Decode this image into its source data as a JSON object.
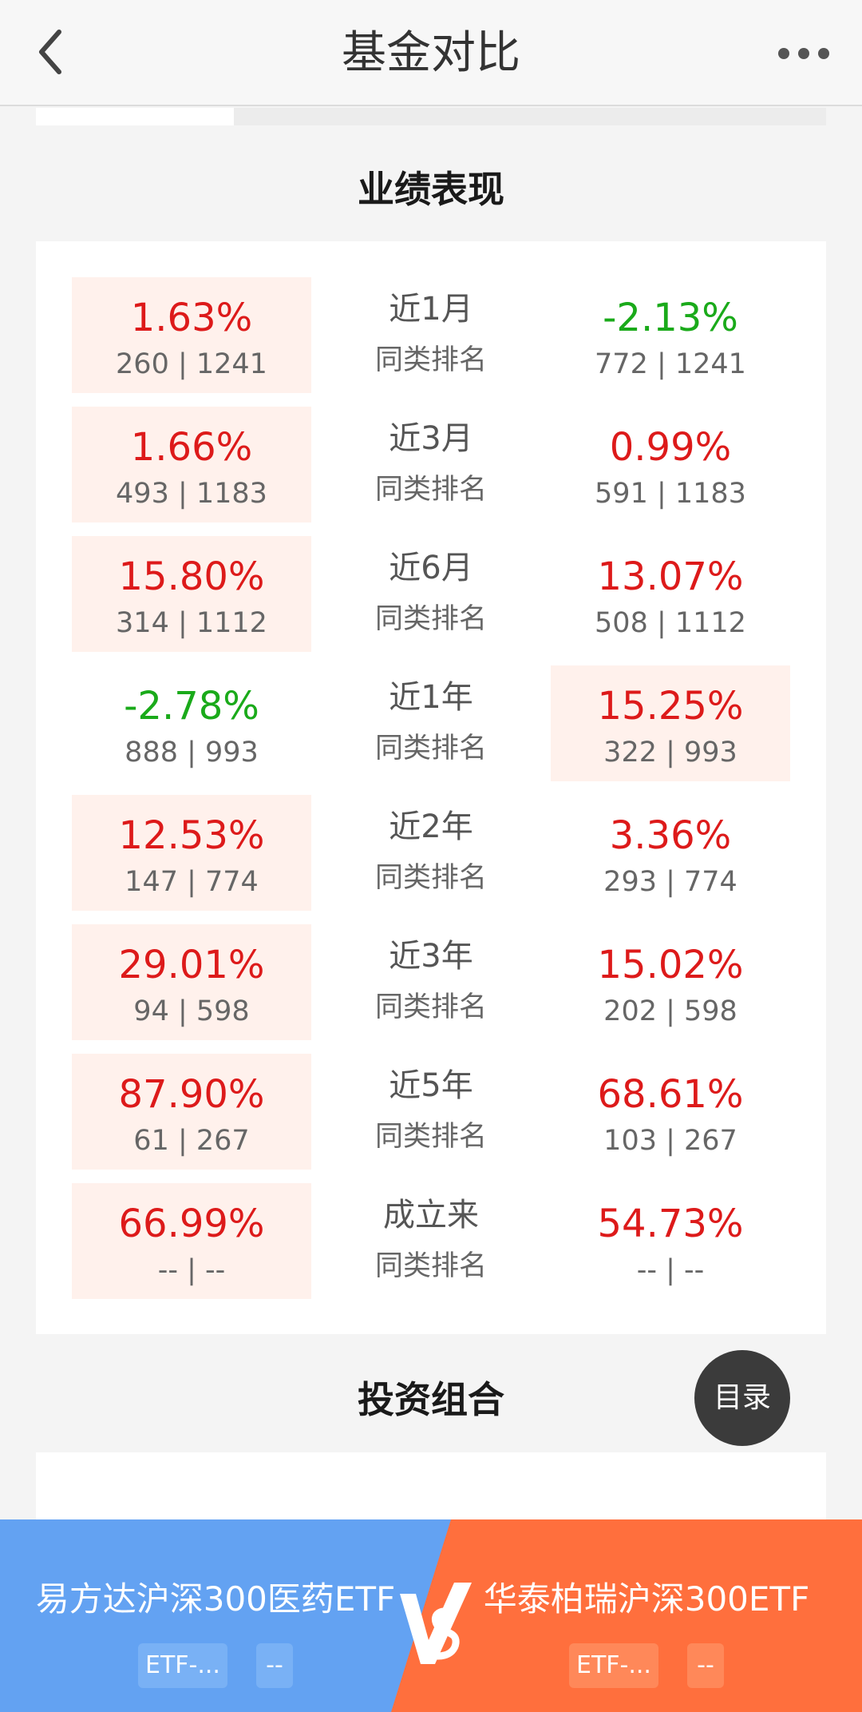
{
  "header": {
    "title": "基金对比"
  },
  "sections": {
    "performance_title": "业绩表现",
    "portfolio_title": "投资组合"
  },
  "performance": [
    {
      "period": "近1月",
      "rank_label": "同类排名",
      "left": {
        "pct": "1.63%",
        "rank": "260 | 1241",
        "dir": "up"
      },
      "right": {
        "pct": "-2.13%",
        "rank": "772 | 1241",
        "dir": "down"
      },
      "better": "left"
    },
    {
      "period": "近3月",
      "rank_label": "同类排名",
      "left": {
        "pct": "1.66%",
        "rank": "493 | 1183",
        "dir": "up"
      },
      "right": {
        "pct": "0.99%",
        "rank": "591 | 1183",
        "dir": "up"
      },
      "better": "left"
    },
    {
      "period": "近6月",
      "rank_label": "同类排名",
      "left": {
        "pct": "15.80%",
        "rank": "314 | 1112",
        "dir": "up"
      },
      "right": {
        "pct": "13.07%",
        "rank": "508 | 1112",
        "dir": "up"
      },
      "better": "left"
    },
    {
      "period": "近1年",
      "rank_label": "同类排名",
      "left": {
        "pct": "-2.78%",
        "rank": "888 | 993",
        "dir": "down"
      },
      "right": {
        "pct": "15.25%",
        "rank": "322 | 993",
        "dir": "up"
      },
      "better": "right"
    },
    {
      "period": "近2年",
      "rank_label": "同类排名",
      "left": {
        "pct": "12.53%",
        "rank": "147 | 774",
        "dir": "up"
      },
      "right": {
        "pct": "3.36%",
        "rank": "293 | 774",
        "dir": "up"
      },
      "better": "left"
    },
    {
      "period": "近3年",
      "rank_label": "同类排名",
      "left": {
        "pct": "29.01%",
        "rank": "94 | 598",
        "dir": "up"
      },
      "right": {
        "pct": "15.02%",
        "rank": "202 | 598",
        "dir": "up"
      },
      "better": "left"
    },
    {
      "period": "近5年",
      "rank_label": "同类排名",
      "left": {
        "pct": "87.90%",
        "rank": "61 | 267",
        "dir": "up"
      },
      "right": {
        "pct": "68.61%",
        "rank": "103 | 267",
        "dir": "up"
      },
      "better": "left"
    },
    {
      "period": "成立来",
      "rank_label": "同类排名",
      "left": {
        "pct": "66.99%",
        "rank": "-- | --",
        "dir": "up"
      },
      "right": {
        "pct": "54.73%",
        "rank": "-- | --",
        "dir": "up"
      },
      "better": "left"
    }
  ],
  "toc_button": "目录",
  "compare": {
    "left_fund": {
      "name": "易方达沪深300医药ETF",
      "tag1": "ETF-...",
      "tag2": "--"
    },
    "right_fund": {
      "name": "华泰柏瑞沪深300ETF",
      "tag1": "ETF-...",
      "tag2": "--"
    }
  },
  "colors": {
    "up": "#dd1a1a",
    "down": "#1aaa1a",
    "highlight": "#fff1ec",
    "left_bar": "#63a2f2",
    "right_bar": "#ff6f3d"
  },
  "icons": {
    "back": "chevron-left-icon",
    "more": "more-dots-icon",
    "vs": "vs-icon"
  }
}
